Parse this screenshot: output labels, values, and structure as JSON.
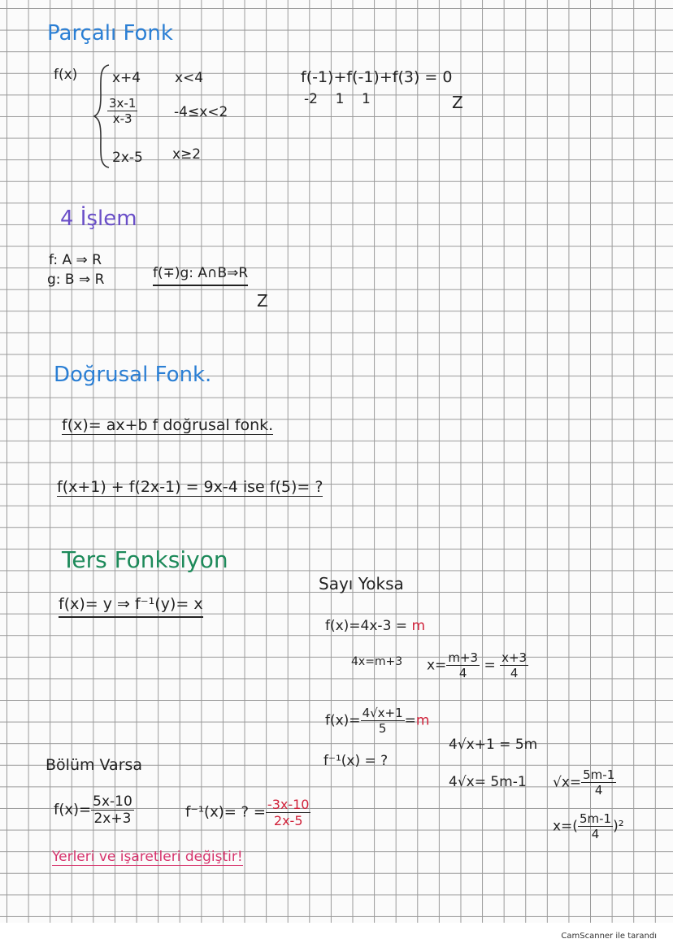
{
  "sections": {
    "parcali": {
      "title": "Parçalı Fonk",
      "fx": "f(x)",
      "cases": [
        {
          "expr": "x+4",
          "cond": "x<4"
        },
        {
          "num": "3x-1",
          "den": "x-3",
          "cond": "-4≤x<2"
        },
        {
          "expr": "2x-5",
          "cond": "x≥2"
        }
      ],
      "sum": "f(-1)+f(-1)+f(3) = 0",
      "values": "-2    1    1",
      "mark": "Z"
    },
    "islem": {
      "title": "4 İşlem",
      "line1": "f: A ⇒ R",
      "line2": "g: B ⇒ R",
      "op": "f(∓)g: A∩B⇒R",
      "mark": "Z"
    },
    "dogrusal": {
      "title": "Doğrusal Fonk.",
      "def": "f(x)= ax+b   f doğrusal fonk.",
      "question": "f(x+1) + f(2x-1) = 9x-4  ise  f(5)= ?"
    },
    "ters": {
      "title": "Ters Fonksiyon",
      "rule": "f(x)= y  ⇒  f⁻¹(y)= x"
    },
    "sayi": {
      "title": "Sayı Yoksa",
      "eq1": "f(x)=4x-3 =",
      "m": "m",
      "eq2": "4x=m+3",
      "eq3": "x=",
      "n1": "m+3",
      "d1": "4",
      "eq3b": "=",
      "n2": "x+3",
      "d2": "4",
      "eq4": "f(x)=",
      "n3": "4√x+1",
      "d3": "5",
      "eq4b": "=",
      "eq5": "f⁻¹(x) = ?",
      "eq6": "4√x+1 = 5m",
      "eq7": "4√x= 5m-1",
      "eq8": "√x=",
      "n4": "5m-1",
      "d4": "4",
      "eq9": "x=(",
      "n5": "5m-1",
      "d5": "4",
      "eq9b": ")²"
    },
    "bolum": {
      "title": "Bölüm Varsa",
      "fx": "f(x)=",
      "n1": "5x-10",
      "d1": "2x+3",
      "inv": "f⁻¹(x)= ? =",
      "n2": "-3x-10",
      "d2": "2x-5",
      "note": "Yerleri ve işaretleri değiştir!"
    }
  },
  "footer": "CamScanner ile tarandı",
  "colors": {
    "title_blue": "#2b7fd4",
    "islem_purple": "#6a4fc8",
    "ters_green": "#1d8a5a",
    "highlight_red": "#d0233b"
  }
}
